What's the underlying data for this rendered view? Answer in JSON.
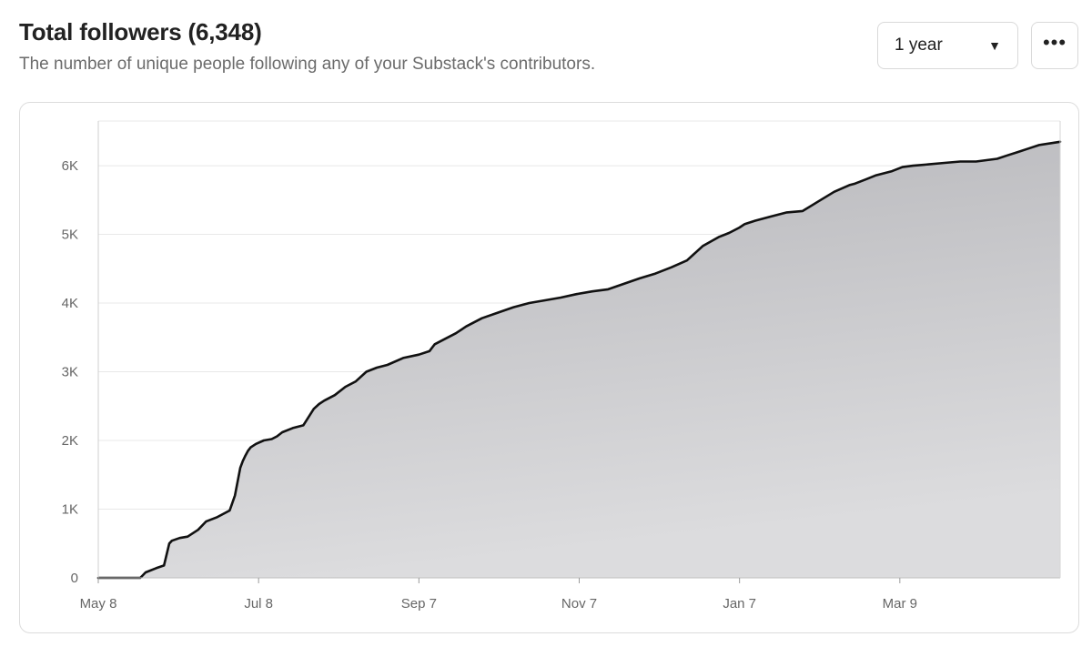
{
  "header": {
    "title": "Total followers (6,348)",
    "subtitle": "The number of unique people following any of your Substack's contributors."
  },
  "controls": {
    "range_value": "1 year",
    "range_caret_icon": "caret-down-icon",
    "more_icon": "ellipsis-icon",
    "more_label": "•••"
  },
  "colors": {
    "line": "#111111",
    "fill_top": "#b6b6ba",
    "fill_bottom": "#dcdcde",
    "grid": "#e8e8e8"
  },
  "chart_data": {
    "type": "area",
    "title": "Total followers (6,348)",
    "xlabel": "",
    "ylabel": "",
    "x_tick_labels": [
      "May 8",
      "Jul 8",
      "Sep 7",
      "Nov 7",
      "Jan 7",
      "Mar 9"
    ],
    "x_tick_days": [
      0,
      61,
      122,
      183,
      244,
      305
    ],
    "y_ticks": [
      0,
      1000,
      2000,
      3000,
      4000,
      5000,
      6000
    ],
    "y_tick_labels": [
      "0",
      "1K",
      "2K",
      "3K",
      "4K",
      "5K",
      "6K"
    ],
    "xlim_days": [
      0,
      366
    ],
    "ylim": [
      0,
      6650
    ],
    "grid": true,
    "legend": "none",
    "series": [
      {
        "x_days": [
          0,
          16,
          18,
          22,
          25,
          27,
          28,
          31,
          34,
          38,
          41,
          45,
          50,
          52,
          54,
          55,
          56,
          57,
          58,
          60,
          63,
          66,
          68,
          70,
          74,
          78,
          82,
          84,
          86,
          90,
          94,
          98,
          102,
          106,
          110,
          116,
          122,
          126,
          128,
          132,
          136,
          140,
          146,
          152,
          158,
          164,
          170,
          176,
          182,
          188,
          194,
          200,
          206,
          212,
          218,
          224,
          230,
          236,
          240,
          244,
          246,
          250,
          256,
          262,
          268,
          274,
          280,
          286,
          288,
          292,
          296,
          302,
          306,
          310,
          316,
          322,
          328,
          334,
          338,
          342,
          346,
          350,
          354,
          358,
          366
        ],
        "y": [
          0,
          0,
          80,
          140,
          180,
          500,
          540,
          580,
          600,
          700,
          820,
          880,
          980,
          1200,
          1600,
          1700,
          1780,
          1850,
          1900,
          1950,
          2000,
          2020,
          2060,
          2120,
          2180,
          2220,
          2460,
          2530,
          2580,
          2660,
          2780,
          2860,
          3000,
          3060,
          3100,
          3200,
          3250,
          3300,
          3400,
          3480,
          3560,
          3660,
          3780,
          3860,
          3940,
          4000,
          4040,
          4080,
          4130,
          4170,
          4200,
          4280,
          4360,
          4430,
          4520,
          4620,
          4830,
          4960,
          5020,
          5100,
          5150,
          5200,
          5260,
          5320,
          5340,
          5480,
          5620,
          5720,
          5740,
          5800,
          5860,
          5920,
          5980,
          6000,
          6020,
          6040,
          6060,
          6060,
          6080,
          6100,
          6150,
          6200,
          6250,
          6300,
          6348
        ]
      }
    ]
  }
}
